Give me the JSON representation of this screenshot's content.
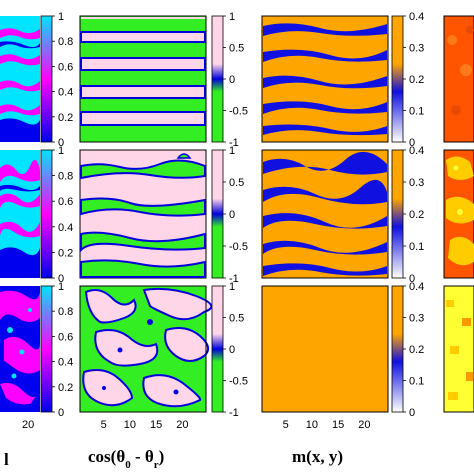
{
  "chart_data": {
    "type": "heatmap",
    "columns": [
      {
        "id": "col1",
        "xlabel": "l",
        "colorbar": {
          "ticks": [
            "1",
            "0.8",
            "0.6",
            "0.4",
            "0.2",
            "0"
          ],
          "range": [
            0,
            1
          ],
          "colors": [
            "#0000ee",
            "#ff00ff",
            "#00e5ff"
          ]
        },
        "xticks": [
          "20"
        ],
        "rows": [
          "stripes",
          "wavy stripes",
          "disordered"
        ]
      },
      {
        "id": "col2",
        "xlabel": "cos(θ0 - θr)",
        "xlabel_main": "cos(θ",
        "xlabel_sub1": "0",
        "xlabel_mid": " - θ",
        "xlabel_sub2": "r",
        "xlabel_end": ")",
        "colorbar": {
          "ticks": [
            "1",
            "0.5",
            "0",
            "-0.5",
            "-1"
          ],
          "range": [
            -1,
            1
          ],
          "colors": [
            "#33ee22",
            "#0000dd",
            "#ffd6e8"
          ]
        },
        "xticks": [
          "5",
          "10",
          "15",
          "20"
        ],
        "rows": [
          "stripes",
          "wavy stripes",
          "disordered"
        ]
      },
      {
        "id": "col3",
        "xlabel": "m(x, y)",
        "colorbar": {
          "ticks": [
            "0.4",
            "0.3",
            "0.2",
            "0.1",
            "0"
          ],
          "range": [
            0,
            0.4
          ],
          "colors": [
            "#ffffff",
            "#1010e0",
            "#ffa500"
          ]
        },
        "xticks": [
          "5",
          "10",
          "15",
          "20"
        ],
        "rows": [
          "stripes",
          "wavy stripes",
          "uniform"
        ]
      },
      {
        "id": "col4",
        "xlabel": "",
        "colorbar": null,
        "xticks": [],
        "rows": [
          "mottled",
          "mottled",
          "mottled"
        ]
      }
    ],
    "colors": {
      "col1": [
        "#0000ee",
        "#ff00ff",
        "#00e5ff"
      ],
      "col2": [
        "#33ee22",
        "#0000dd",
        "#ffd6e8"
      ],
      "col3": [
        "#ffa500",
        "#1010e0",
        "#ffffff"
      ],
      "col4": [
        "#ff5500",
        "#ffcc00",
        "#ffff33"
      ]
    }
  }
}
